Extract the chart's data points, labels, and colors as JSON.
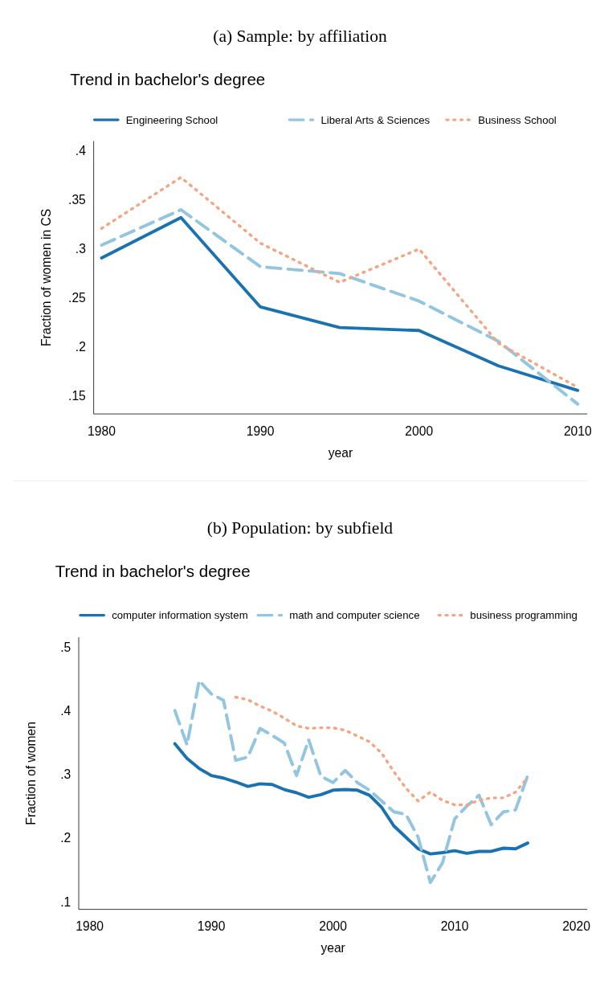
{
  "chart_data": [
    {
      "type": "line",
      "title": "(a) Sample: by affiliation",
      "subtitle": "Trend in bachelor's degree",
      "xlabel": "year",
      "ylabel": "Fraction of women in CS",
      "x": [
        1980,
        1985,
        1990,
        1995,
        2000,
        2005,
        2010
      ],
      "xlim": [
        1979.5,
        2010.6
      ],
      "xticks": [
        1980,
        1990,
        2000,
        2010
      ],
      "ylim": [
        0.132,
        0.41
      ],
      "yticks": [
        {
          "value": 0.15,
          "label": ".15"
        },
        {
          "value": 0.2,
          "label": ".2"
        },
        {
          "value": 0.25,
          "label": ".25"
        },
        {
          "value": 0.3,
          "label": ".3"
        },
        {
          "value": 0.35,
          "label": ".35"
        },
        {
          "value": 0.4,
          "label": ".4"
        }
      ],
      "grid": false,
      "legend": "top",
      "marker": "none",
      "series": [
        {
          "name": "Engineering School",
          "color": "#1a72b0",
          "line_style": "solid",
          "values": [
            0.291,
            0.332,
            0.241,
            0.22,
            0.217,
            0.181,
            0.156
          ]
        },
        {
          "name": "Liberal Arts & Sciences",
          "color": "#92c5e0",
          "line_style": "dashed",
          "values": [
            0.304,
            0.34,
            0.282,
            0.275,
            0.247,
            0.206,
            0.142
          ]
        },
        {
          "name": "Business School",
          "color": "#f4a582",
          "line_style": "dotted",
          "values": [
            0.321,
            0.373,
            0.306,
            0.266,
            0.3,
            0.204,
            0.159
          ]
        }
      ]
    },
    {
      "type": "line",
      "title": "(b) Population: by subfield",
      "subtitle": "Trend in bachelor's degree",
      "xlabel": "year",
      "ylabel": "Fraction of women",
      "xlim": [
        1979.1,
        2020.9
      ],
      "xticks": [
        1980,
        1990,
        2000,
        2010,
        2020
      ],
      "ylim": [
        0.089,
        0.516
      ],
      "yticks": [
        {
          "value": 0.1,
          "label": ".1"
        },
        {
          "value": 0.2,
          "label": ".2"
        },
        {
          "value": 0.3,
          "label": ".3"
        },
        {
          "value": 0.4,
          "label": ".4"
        },
        {
          "value": 0.5,
          "label": ".5"
        }
      ],
      "grid": false,
      "legend": "top",
      "marker": "none",
      "series": [
        {
          "name": "computer information system",
          "color": "#1a72b0",
          "line_style": "solid",
          "x": [
            1987,
            1988,
            1989,
            1990,
            1991,
            1992,
            1993,
            1994,
            1995,
            1996,
            1997,
            1998,
            1999,
            2000,
            2001,
            2002,
            2003,
            2004,
            2005,
            2006,
            2007,
            2008,
            2009,
            2010,
            2011,
            2012,
            2013,
            2014,
            2015,
            2016
          ],
          "values": [
            0.349,
            0.326,
            0.31,
            0.299,
            0.295,
            0.289,
            0.282,
            0.286,
            0.285,
            0.277,
            0.272,
            0.265,
            0.269,
            0.276,
            0.277,
            0.276,
            0.268,
            0.249,
            0.22,
            0.202,
            0.184,
            0.176,
            0.178,
            0.181,
            0.177,
            0.18,
            0.18,
            0.185,
            0.184,
            0.193
          ]
        },
        {
          "name": "math and computer science",
          "color": "#92c5e0",
          "line_style": "dashed",
          "x": [
            1987,
            1988,
            1989,
            1990,
            1991,
            1992,
            1993,
            1994,
            1995,
            1996,
            1997,
            1998,
            1999,
            2000,
            2001,
            2002,
            2003,
            2004,
            2005,
            2006,
            2007,
            2008,
            2009,
            2010,
            2011,
            2012,
            2013,
            2014,
            2015,
            2016
          ],
          "values": [
            0.401,
            0.347,
            0.448,
            0.427,
            0.417,
            0.323,
            0.328,
            0.373,
            0.362,
            0.35,
            0.299,
            0.355,
            0.298,
            0.288,
            0.307,
            0.288,
            0.276,
            0.259,
            0.242,
            0.238,
            0.202,
            0.131,
            0.162,
            0.231,
            0.251,
            0.268,
            0.222,
            0.242,
            0.245,
            0.299
          ]
        },
        {
          "name": "business programming",
          "color": "#f4a582",
          "line_style": "dotted",
          "x": [
            1992,
            1993,
            1994,
            1995,
            1996,
            1997,
            1998,
            1999,
            2000,
            2001,
            2002,
            2003,
            2004,
            2005,
            2006,
            2007,
            2008,
            2009,
            2010,
            2011,
            2012,
            2013,
            2014,
            2015,
            2016
          ],
          "values": [
            0.422,
            0.418,
            0.408,
            0.4,
            0.389,
            0.377,
            0.373,
            0.374,
            0.374,
            0.37,
            0.361,
            0.352,
            0.334,
            0.305,
            0.279,
            0.259,
            0.273,
            0.26,
            0.253,
            0.253,
            0.26,
            0.264,
            0.264,
            0.273,
            0.296
          ]
        }
      ]
    }
  ]
}
